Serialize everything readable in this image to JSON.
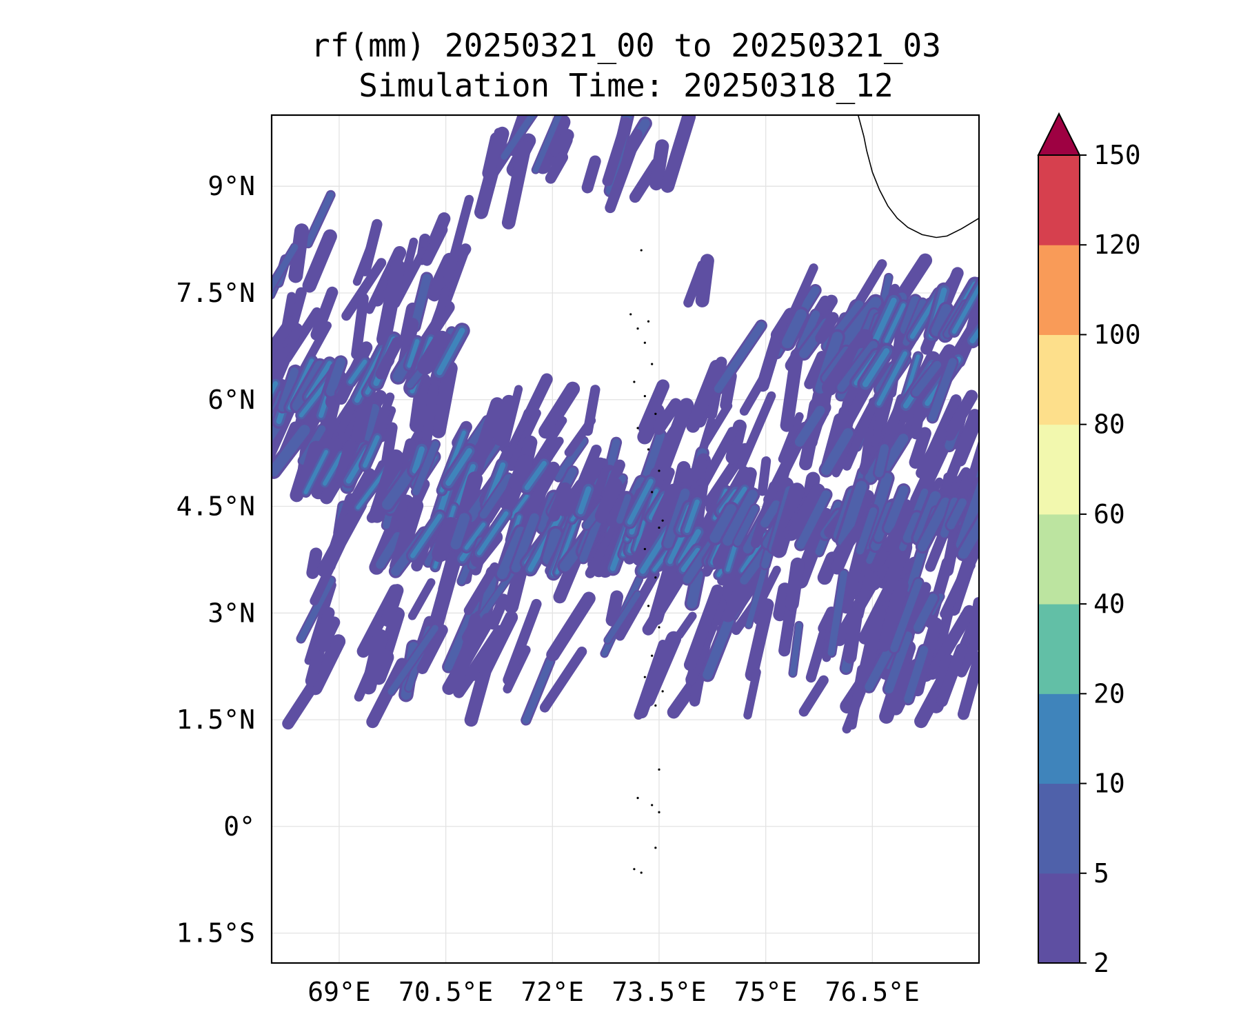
{
  "chart_data": {
    "type": "heatmap",
    "title_line1": "rf(mm) 20250321_00 to 20250321_03",
    "title_line2": "Simulation Time: 20250318_12",
    "x_ticks": [
      {
        "value": 69,
        "label": "69°E"
      },
      {
        "value": 70.5,
        "label": "70.5°E"
      },
      {
        "value": 72,
        "label": "72°E"
      },
      {
        "value": 73.5,
        "label": "73.5°E"
      },
      {
        "value": 75,
        "label": "75°E"
      },
      {
        "value": 76.5,
        "label": "76.5°E"
      }
    ],
    "y_ticks": [
      {
        "value": 9,
        "label": "9°N"
      },
      {
        "value": 7.5,
        "label": "7.5°N"
      },
      {
        "value": 6,
        "label": "6°N"
      },
      {
        "value": 4.5,
        "label": "4.5°N"
      },
      {
        "value": 3,
        "label": "3°N"
      },
      {
        "value": 1.5,
        "label": "1.5°N"
      },
      {
        "value": 0,
        "label": "0°"
      },
      {
        "value": -1.5,
        "label": "1.5°S"
      }
    ],
    "xlim": [
      68.05,
      78.0
    ],
    "ylim": [
      -1.92,
      10.0
    ],
    "grid": true,
    "colorbar": {
      "levels": [
        2,
        5,
        10,
        20,
        40,
        60,
        80,
        100,
        120,
        150
      ],
      "labels": [
        "2",
        "5",
        "10",
        "20",
        "40",
        "60",
        "80",
        "100",
        "120",
        "150"
      ],
      "colors": [
        "#5e4fa2",
        "#4f61aa",
        "#3f84bb",
        "#62bfa6",
        "#bce4a0",
        "#f2f8ae",
        "#fddf8b",
        "#f99b58",
        "#d6404e"
      ],
      "extend_color": "#9e0142",
      "extend": "max"
    },
    "rain_bands": [
      {
        "lon1": 68.1,
        "lat1": 5.2,
        "lon2": 74.5,
        "lat2": 4.3,
        "width": 0.55,
        "intensity": 3
      },
      {
        "lon1": 69.8,
        "lat1": 4.0,
        "lon2": 75.0,
        "lat2": 3.9,
        "width": 0.35,
        "intensity": 3
      },
      {
        "lon1": 74.5,
        "lat1": 4.3,
        "lon2": 78.0,
        "lat2": 4.3,
        "width": 0.35,
        "intensity": 2
      },
      {
        "lon1": 68.1,
        "lat1": 6.0,
        "lon2": 70.5,
        "lat2": 6.7,
        "width": 0.25,
        "intensity": 3
      },
      {
        "lon1": 75.5,
        "lat1": 6.9,
        "lon2": 78.0,
        "lat2": 7.2,
        "width": 0.28,
        "intensity": 3
      },
      {
        "lon1": 75.8,
        "lat1": 6.5,
        "lon2": 77.5,
        "lat2": 6.2,
        "width": 0.2,
        "intensity": 3
      },
      {
        "lon1": 72.2,
        "lat1": 4.6,
        "lon2": 74.0,
        "lat2": 4.4,
        "width": 0.2,
        "intensity": 3
      }
    ],
    "rain_regions": [
      {
        "lon": [
          71.0,
          73.8
        ],
        "lat": [
          9.0,
          9.75
        ],
        "density": 0.45,
        "seed": 11
      },
      {
        "lon": [
          68.05,
          70.7
        ],
        "lat": [
          5.4,
          8.6
        ],
        "density": 0.3,
        "seed": 21
      },
      {
        "lon": [
          68.5,
          78.0
        ],
        "lat": [
          1.8,
          5.9
        ],
        "density": 0.3,
        "seed": 31
      },
      {
        "lon": [
          74.0,
          78.0
        ],
        "lat": [
          5.4,
          7.7
        ],
        "density": 0.22,
        "seed": 41
      },
      {
        "lon": [
          76.0,
          78.0
        ],
        "lat": [
          2.0,
          5.8
        ],
        "density": 0.28,
        "seed": 51
      }
    ],
    "coastline": {
      "name": "India southern tip coastline",
      "lon": [
        76.3,
        76.38,
        76.42,
        76.5,
        76.6,
        76.72,
        76.85,
        77.0,
        77.2,
        77.4,
        77.55,
        77.75,
        78.0
      ],
      "lat": [
        10.0,
        9.7,
        9.5,
        9.2,
        8.95,
        8.72,
        8.55,
        8.42,
        8.32,
        8.28,
        8.3,
        8.4,
        8.55
      ]
    },
    "islands": {
      "name": "Maldives and Lakshadweep atolls",
      "points": [
        [
          73.25,
          8.1
        ],
        [
          73.1,
          7.2
        ],
        [
          73.2,
          7.0
        ],
        [
          73.35,
          7.1
        ],
        [
          73.3,
          6.8
        ],
        [
          73.4,
          6.5
        ],
        [
          73.15,
          6.25
        ],
        [
          73.3,
          6.05
        ],
        [
          73.45,
          5.8
        ],
        [
          73.2,
          5.6
        ],
        [
          73.35,
          5.3
        ],
        [
          73.5,
          5.0
        ],
        [
          73.4,
          4.7
        ],
        [
          73.55,
          4.3
        ],
        [
          73.5,
          4.2
        ],
        [
          73.3,
          3.9
        ],
        [
          73.45,
          3.5
        ],
        [
          73.35,
          3.1
        ],
        [
          73.5,
          2.8
        ],
        [
          73.4,
          2.4
        ],
        [
          73.3,
          2.1
        ],
        [
          73.55,
          1.9
        ],
        [
          73.45,
          1.7
        ],
        [
          73.5,
          0.8
        ],
        [
          73.4,
          0.3
        ],
        [
          73.2,
          0.4
        ],
        [
          73.5,
          0.2
        ],
        [
          73.45,
          -0.3
        ],
        [
          73.15,
          -0.6
        ],
        [
          73.25,
          -0.65
        ]
      ]
    }
  }
}
